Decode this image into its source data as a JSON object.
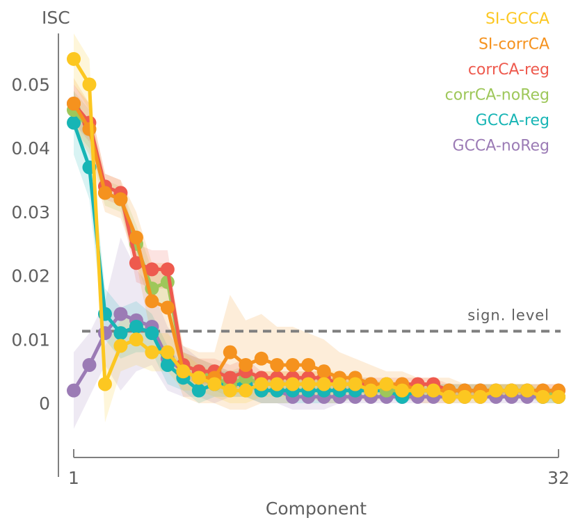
{
  "chart_data": {
    "type": "line",
    "ylabel": "ISC",
    "xlabel": "Component",
    "x_tick_labels": [
      "1",
      "32"
    ],
    "y_tick_labels": [
      "0",
      "0.01",
      "0.02",
      "0.03",
      "0.04",
      "0.05"
    ],
    "y_ticks": [
      0,
      0.01,
      0.02,
      0.03,
      0.04,
      0.05
    ],
    "xlim": [
      1,
      32
    ],
    "ylim": [
      -0.006,
      0.058
    ],
    "sign_level": {
      "label": "sign. level",
      "value": 0.0113,
      "color": "#7f7f7f"
    },
    "x": [
      1,
      2,
      3,
      4,
      5,
      6,
      7,
      8,
      9,
      10,
      11,
      12,
      13,
      14,
      15,
      16,
      17,
      18,
      19,
      20,
      21,
      22,
      23,
      24,
      25,
      26,
      27,
      28,
      29,
      30,
      31,
      32
    ],
    "series": [
      {
        "name": "GCCA-noReg",
        "color": "#9b7bb5",
        "values": [
          0.002,
          0.006,
          0.011,
          0.014,
          0.013,
          0.012,
          0.007,
          0.005,
          0.004,
          0.003,
          0.003,
          0.003,
          0.002,
          0.002,
          0.001,
          0.001,
          0.001,
          0.001,
          0.001,
          0.001,
          0.001,
          0.001,
          0.001,
          0.001,
          0.001,
          0.001,
          0.001,
          0.001,
          0.001,
          0.001,
          0.001,
          0.001
        ],
        "band": [
          0.006,
          0.005,
          0.005,
          0.012,
          0.008,
          0.006,
          0.005,
          0.004,
          0.003,
          0.003,
          0.002,
          0.002,
          0.002,
          0.002,
          0.002,
          0.002,
          0.002,
          0.001,
          0.001,
          0.001,
          0.001,
          0.001,
          0.001,
          0.001,
          0.001,
          0.001,
          0.001,
          0.001,
          0.001,
          0.001,
          0.001,
          0.001
        ]
      },
      {
        "name": "GCCA-reg",
        "color": "#17b5b5",
        "values": [
          0.044,
          0.037,
          0.014,
          0.011,
          0.012,
          0.011,
          0.006,
          0.004,
          0.002,
          0.003,
          0.003,
          0.003,
          0.002,
          0.002,
          0.002,
          0.002,
          0.002,
          0.002,
          0.002,
          0.002,
          0.002,
          0.001,
          0.002,
          0.002,
          0.002,
          0.002,
          0.002,
          0.002,
          0.002,
          0.002,
          0.001,
          0.001
        ],
        "band": [
          0.005,
          0.005,
          0.004,
          0.004,
          0.004,
          0.003,
          0.003,
          0.002,
          0.002,
          0.002,
          0.002,
          0.002,
          0.002,
          0.002,
          0.002,
          0.002,
          0.002,
          0.002,
          0.001,
          0.001,
          0.001,
          0.001,
          0.001,
          0.001,
          0.001,
          0.001,
          0.001,
          0.001,
          0.001,
          0.001,
          0.001,
          0.001
        ]
      },
      {
        "name": "corrCA-noReg",
        "color": "#9ec75a",
        "values": [
          0.046,
          0.043,
          0.033,
          0.032,
          0.025,
          0.018,
          0.019,
          0.006,
          0.005,
          0.004,
          0.003,
          0.004,
          0.003,
          0.003,
          0.003,
          0.003,
          0.003,
          0.003,
          0.003,
          0.003,
          0.002,
          0.002,
          0.002,
          0.002,
          0.002,
          0.002,
          0.002,
          0.002,
          0.002,
          0.002,
          0.002,
          0.001
        ],
        "band": [
          0.003,
          0.003,
          0.002,
          0.002,
          0.003,
          0.003,
          0.003,
          0.002,
          0.002,
          0.002,
          0.002,
          0.002,
          0.001,
          0.001,
          0.001,
          0.001,
          0.001,
          0.001,
          0.001,
          0.001,
          0.001,
          0.001,
          0.001,
          0.001,
          0.001,
          0.001,
          0.001,
          0.001,
          0.001,
          0.001,
          0.001,
          0.001
        ]
      },
      {
        "name": "corrCA-reg",
        "color": "#ee5a4e",
        "values": [
          0.047,
          0.044,
          0.034,
          0.033,
          0.022,
          0.021,
          0.021,
          0.006,
          0.005,
          0.005,
          0.004,
          0.005,
          0.004,
          0.004,
          0.004,
          0.004,
          0.004,
          0.003,
          0.003,
          0.003,
          0.003,
          0.003,
          0.003,
          0.003,
          0.002,
          0.002,
          0.002,
          0.002,
          0.002,
          0.002,
          0.002,
          0.002
        ],
        "band": [
          0.003,
          0.003,
          0.002,
          0.002,
          0.003,
          0.003,
          0.003,
          0.002,
          0.002,
          0.002,
          0.002,
          0.002,
          0.001,
          0.001,
          0.001,
          0.001,
          0.001,
          0.001,
          0.001,
          0.001,
          0.001,
          0.001,
          0.001,
          0.001,
          0.001,
          0.001,
          0.001,
          0.001,
          0.001,
          0.001,
          0.001,
          0.001
        ]
      },
      {
        "name": "SI-corrCA",
        "color": "#f5921e",
        "values": [
          0.047,
          0.043,
          0.033,
          0.032,
          0.026,
          0.016,
          0.015,
          0.005,
          0.004,
          0.004,
          0.008,
          0.006,
          0.007,
          0.006,
          0.006,
          0.006,
          0.005,
          0.004,
          0.004,
          0.003,
          0.003,
          0.003,
          0.002,
          0.002,
          0.002,
          0.002,
          0.002,
          0.002,
          0.002,
          0.002,
          0.002,
          0.002
        ],
        "band": [
          0.004,
          0.004,
          0.003,
          0.003,
          0.004,
          0.006,
          0.007,
          0.004,
          0.004,
          0.004,
          0.009,
          0.007,
          0.007,
          0.006,
          0.006,
          0.005,
          0.005,
          0.004,
          0.003,
          0.003,
          0.002,
          0.002,
          0.002,
          0.002,
          0.002,
          0.001,
          0.001,
          0.001,
          0.001,
          0.001,
          0.001,
          0.001
        ]
      },
      {
        "name": "SI-GCCA",
        "color": "#fcc721",
        "values": [
          0.054,
          0.05,
          0.003,
          0.009,
          0.01,
          0.008,
          0.008,
          0.005,
          0.004,
          0.003,
          0.002,
          0.002,
          0.003,
          0.003,
          0.003,
          0.003,
          0.003,
          0.003,
          0.003,
          0.002,
          0.003,
          0.002,
          0.002,
          0.002,
          0.001,
          0.001,
          0.001,
          0.002,
          0.002,
          0.002,
          0.001,
          0.001
        ],
        "band": [
          0.004,
          0.004,
          0.006,
          0.004,
          0.004,
          0.003,
          0.003,
          0.003,
          0.002,
          0.002,
          0.002,
          0.002,
          0.002,
          0.002,
          0.002,
          0.002,
          0.002,
          0.002,
          0.001,
          0.001,
          0.001,
          0.001,
          0.001,
          0.001,
          0.001,
          0.001,
          0.001,
          0.001,
          0.001,
          0.001,
          0.001,
          0.001
        ]
      }
    ],
    "legend": [
      {
        "label": "SI-GCCA",
        "color": "#fcc721"
      },
      {
        "label": "SI-corrCA",
        "color": "#f5921e"
      },
      {
        "label": "corrCA-reg",
        "color": "#ee5a4e"
      },
      {
        "label": "corrCA-noReg",
        "color": "#9ec75a"
      },
      {
        "label": "GCCA-reg",
        "color": "#17b5b5"
      },
      {
        "label": "GCCA-noReg",
        "color": "#9b7bb5"
      }
    ],
    "legend_position": "top-right",
    "grid": false
  }
}
